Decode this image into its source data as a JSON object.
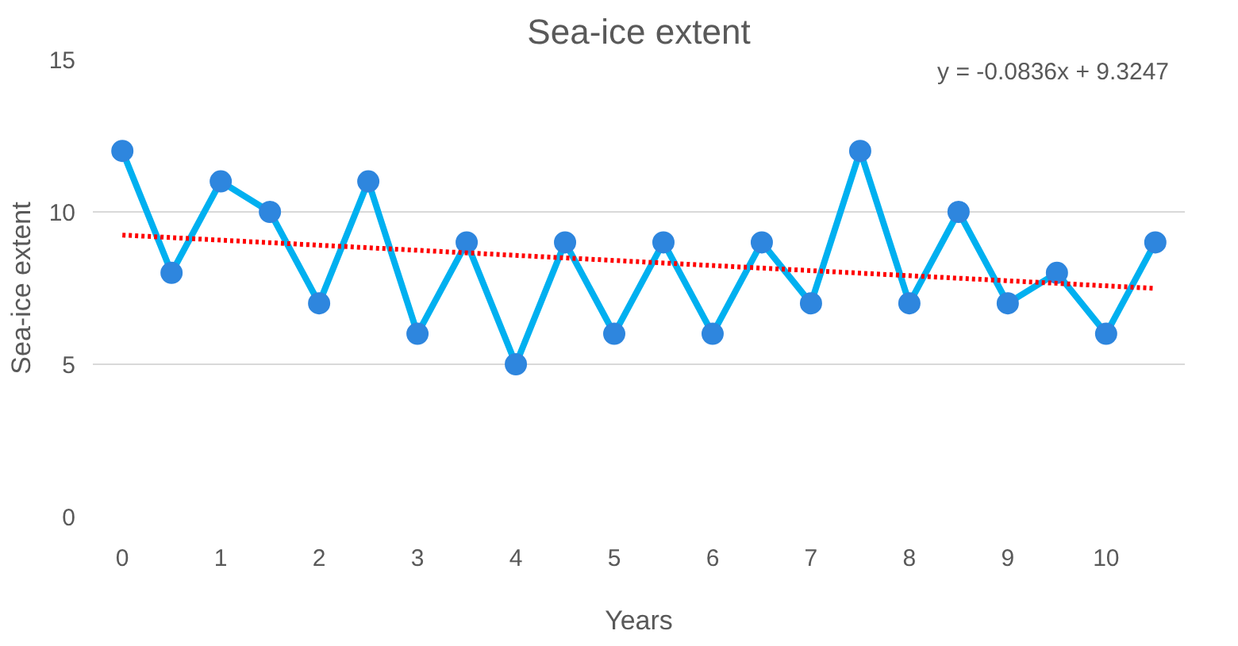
{
  "chart_data": {
    "type": "line",
    "title": "Sea-ice extent",
    "xlabel": "Years",
    "ylabel": "Sea-ice extent",
    "x": [
      0,
      0.5,
      1,
      1.5,
      2,
      2.5,
      3,
      3.5,
      4,
      4.5,
      5,
      5.5,
      6,
      6.5,
      7,
      7.5,
      8,
      8.5,
      9,
      9.5,
      10,
      10.5
    ],
    "series": [
      {
        "color": "#00b0f0",
        "marker": "circle",
        "line_style": "solid",
        "values": [
          12,
          8,
          11,
          10,
          7,
          11,
          6,
          9,
          5,
          9,
          6,
          9,
          6,
          9,
          7,
          12,
          7,
          10,
          7,
          8,
          6,
          9
        ]
      },
      {
        "color": "#ff0000",
        "marker": "none",
        "line_style": "dotted",
        "x": [
          0,
          10.5
        ],
        "values": [
          9.24,
          7.49
        ]
      }
    ],
    "annotations": [
      "y = -0.0836x + 9.3247"
    ],
    "xlim": [
      -0.3,
      10.8
    ],
    "xticks": [
      0,
      1,
      2,
      3,
      4,
      5,
      6,
      7,
      8,
      9,
      10
    ],
    "ylim": [
      0,
      15
    ],
    "yticks": [
      0,
      5,
      10,
      15
    ],
    "grid": "y"
  }
}
